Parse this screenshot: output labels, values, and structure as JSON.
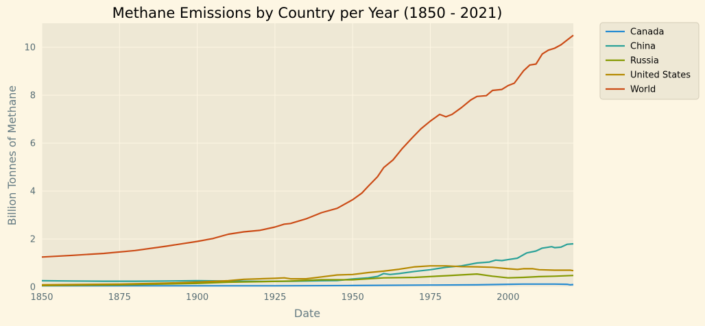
{
  "chart_data": {
    "type": "line",
    "title": "Methane Emissions by Country per Year (1850 - 2021)",
    "xlabel": "Date",
    "ylabel": "Billion Tonnes of Methane",
    "xlim": [
      1850,
      2021
    ],
    "ylim": [
      0,
      11
    ],
    "x_ticks": [
      1850,
      1875,
      1900,
      1925,
      1950,
      1975,
      2000
    ],
    "y_ticks": [
      0,
      2,
      4,
      6,
      8,
      10
    ],
    "grid": true,
    "legend_position": "outside top-right",
    "series": [
      {
        "name": "Canada",
        "color": "#268bd2",
        "points": [
          [
            1850,
            0.05
          ],
          [
            1875,
            0.05
          ],
          [
            1900,
            0.05
          ],
          [
            1925,
            0.05
          ],
          [
            1950,
            0.06
          ],
          [
            1975,
            0.08
          ],
          [
            1990,
            0.09
          ],
          [
            2000,
            0.11
          ],
          [
            2005,
            0.12
          ],
          [
            2010,
            0.12
          ],
          [
            2015,
            0.12
          ],
          [
            2019,
            0.11
          ],
          [
            2020,
            0.09
          ],
          [
            2021,
            0.1
          ]
        ]
      },
      {
        "name": "China",
        "color": "#2aa198",
        "points": [
          [
            1850,
            0.26
          ],
          [
            1860,
            0.25
          ],
          [
            1870,
            0.24
          ],
          [
            1880,
            0.24
          ],
          [
            1890,
            0.25
          ],
          [
            1900,
            0.26
          ],
          [
            1910,
            0.25
          ],
          [
            1920,
            0.23
          ],
          [
            1930,
            0.24
          ],
          [
            1940,
            0.26
          ],
          [
            1945,
            0.27
          ],
          [
            1950,
            0.33
          ],
          [
            1955,
            0.38
          ],
          [
            1958,
            0.44
          ],
          [
            1960,
            0.56
          ],
          [
            1962,
            0.52
          ],
          [
            1965,
            0.56
          ],
          [
            1970,
            0.65
          ],
          [
            1975,
            0.72
          ],
          [
            1980,
            0.82
          ],
          [
            1985,
            0.88
          ],
          [
            1990,
            1.0
          ],
          [
            1994,
            1.04
          ],
          [
            1996,
            1.12
          ],
          [
            1998,
            1.1
          ],
          [
            2000,
            1.14
          ],
          [
            2003,
            1.2
          ],
          [
            2006,
            1.42
          ],
          [
            2009,
            1.5
          ],
          [
            2011,
            1.62
          ],
          [
            2014,
            1.68
          ],
          [
            2015,
            1.64
          ],
          [
            2017,
            1.66
          ],
          [
            2019,
            1.78
          ],
          [
            2021,
            1.8
          ]
        ]
      },
      {
        "name": "Russia",
        "color": "#859900",
        "points": [
          [
            1850,
            0.06
          ],
          [
            1875,
            0.09
          ],
          [
            1900,
            0.15
          ],
          [
            1910,
            0.2
          ],
          [
            1920,
            0.22
          ],
          [
            1930,
            0.25
          ],
          [
            1940,
            0.3
          ],
          [
            1950,
            0.3
          ],
          [
            1960,
            0.38
          ],
          [
            1970,
            0.4
          ],
          [
            1980,
            0.47
          ],
          [
            1990,
            0.54
          ],
          [
            1995,
            0.45
          ],
          [
            2000,
            0.38
          ],
          [
            2005,
            0.4
          ],
          [
            2010,
            0.43
          ],
          [
            2015,
            0.45
          ],
          [
            2021,
            0.48
          ]
        ]
      },
      {
        "name": "United States",
        "color": "#b58900",
        "points": [
          [
            1850,
            0.09
          ],
          [
            1875,
            0.12
          ],
          [
            1890,
            0.16
          ],
          [
            1900,
            0.2
          ],
          [
            1910,
            0.26
          ],
          [
            1915,
            0.32
          ],
          [
            1920,
            0.34
          ],
          [
            1925,
            0.36
          ],
          [
            1928,
            0.38
          ],
          [
            1930,
            0.34
          ],
          [
            1935,
            0.34
          ],
          [
            1940,
            0.42
          ],
          [
            1945,
            0.5
          ],
          [
            1950,
            0.52
          ],
          [
            1955,
            0.6
          ],
          [
            1960,
            0.66
          ],
          [
            1965,
            0.74
          ],
          [
            1970,
            0.84
          ],
          [
            1975,
            0.88
          ],
          [
            1980,
            0.88
          ],
          [
            1985,
            0.85
          ],
          [
            1990,
            0.84
          ],
          [
            1995,
            0.82
          ],
          [
            2000,
            0.76
          ],
          [
            2003,
            0.73
          ],
          [
            2005,
            0.76
          ],
          [
            2008,
            0.76
          ],
          [
            2010,
            0.72
          ],
          [
            2015,
            0.7
          ],
          [
            2020,
            0.7
          ],
          [
            2021,
            0.68
          ]
        ]
      },
      {
        "name": "World",
        "color": "#cb4b16",
        "points": [
          [
            1850,
            1.25
          ],
          [
            1860,
            1.32
          ],
          [
            1870,
            1.4
          ],
          [
            1880,
            1.52
          ],
          [
            1890,
            1.7
          ],
          [
            1900,
            1.9
          ],
          [
            1905,
            2.02
          ],
          [
            1910,
            2.2
          ],
          [
            1915,
            2.3
          ],
          [
            1920,
            2.36
          ],
          [
            1925,
            2.5
          ],
          [
            1928,
            2.62
          ],
          [
            1930,
            2.65
          ],
          [
            1935,
            2.84
          ],
          [
            1940,
            3.1
          ],
          [
            1945,
            3.28
          ],
          [
            1950,
            3.64
          ],
          [
            1953,
            3.92
          ],
          [
            1955,
            4.2
          ],
          [
            1958,
            4.6
          ],
          [
            1960,
            4.98
          ],
          [
            1963,
            5.3
          ],
          [
            1966,
            5.78
          ],
          [
            1969,
            6.2
          ],
          [
            1972,
            6.6
          ],
          [
            1975,
            6.92
          ],
          [
            1978,
            7.2
          ],
          [
            1980,
            7.1
          ],
          [
            1982,
            7.2
          ],
          [
            1985,
            7.48
          ],
          [
            1988,
            7.8
          ],
          [
            1990,
            7.95
          ],
          [
            1993,
            7.98
          ],
          [
            1995,
            8.2
          ],
          [
            1998,
            8.24
          ],
          [
            2000,
            8.4
          ],
          [
            2002,
            8.5
          ],
          [
            2005,
            9.02
          ],
          [
            2007,
            9.26
          ],
          [
            2009,
            9.3
          ],
          [
            2011,
            9.72
          ],
          [
            2013,
            9.88
          ],
          [
            2015,
            9.96
          ],
          [
            2017,
            10.1
          ],
          [
            2019,
            10.3
          ],
          [
            2021,
            10.5
          ]
        ]
      }
    ]
  }
}
